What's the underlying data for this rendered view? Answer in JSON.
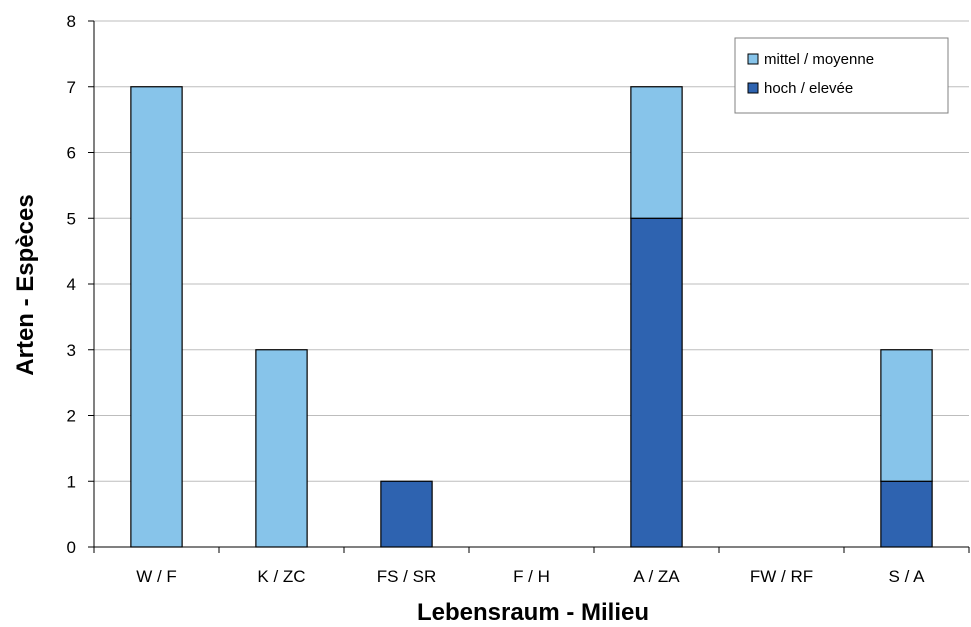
{
  "chart_data": {
    "type": "bar",
    "stacked": true,
    "categories": [
      "W / F",
      "K / ZC",
      "FS / SR",
      "F / H",
      "A / ZA",
      "FW / RF",
      "S / A"
    ],
    "series": [
      {
        "name": "hoch / elevée",
        "color": "#2E63B0",
        "values": [
          0,
          0,
          1,
          0,
          5,
          0,
          1
        ]
      },
      {
        "name": "mittel / moyenne",
        "color": "#87C4EA",
        "values": [
          7,
          3,
          0,
          0,
          2,
          0,
          2
        ]
      }
    ],
    "xlabel": "Lebensraum - Milieu",
    "ylabel": "Arten - Espèces",
    "ylim": [
      0,
      8
    ],
    "yticks": [
      "0",
      "1",
      "2",
      "3",
      "4",
      "5",
      "6",
      "7",
      "8"
    ],
    "grid": true,
    "legend_position": "top-right",
    "legend_order": [
      "mittel / moyenne",
      "hoch / elevée"
    ]
  }
}
